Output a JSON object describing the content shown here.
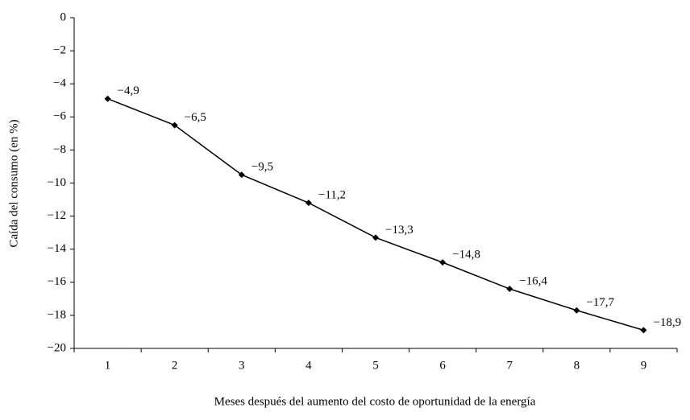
{
  "chart_data": {
    "type": "line",
    "y_label": "Caída del consumo (en %)",
    "x_label": "Meses después del aumento del costo de oportunidad de la energía",
    "categories": [
      "1",
      "2",
      "3",
      "4",
      "5",
      "6",
      "7",
      "8",
      "9"
    ],
    "series": [
      {
        "color": "#000000",
        "values": [
          -4.9,
          -6.5,
          -9.5,
          -11.2,
          -13.3,
          -14.8,
          -16.4,
          -17.7,
          -18.9
        ],
        "value_labels": [
          "−4,9",
          "−6,5",
          "−9,5",
          "−11,2",
          "−13,3",
          "−14,8",
          "−16,4",
          "−17,7",
          "−18,9"
        ]
      }
    ],
    "ylim": [
      -20,
      0
    ],
    "yticks": [
      0,
      {
        "value": -2,
        "label": "−2"
      },
      {
        "value": -4,
        "label": "−4"
      },
      {
        "value": -6,
        "label": "−6"
      },
      {
        "value": -8,
        "label": "−8"
      },
      {
        "value": -10,
        "label": "−10"
      },
      {
        "value": -12,
        "label": "−12"
      },
      {
        "value": -14,
        "label": "−14"
      },
      {
        "value": -16,
        "label": "−16"
      },
      {
        "value": -18,
        "label": "−18"
      },
      {
        "value": -20,
        "label": "−20"
      }
    ]
  }
}
